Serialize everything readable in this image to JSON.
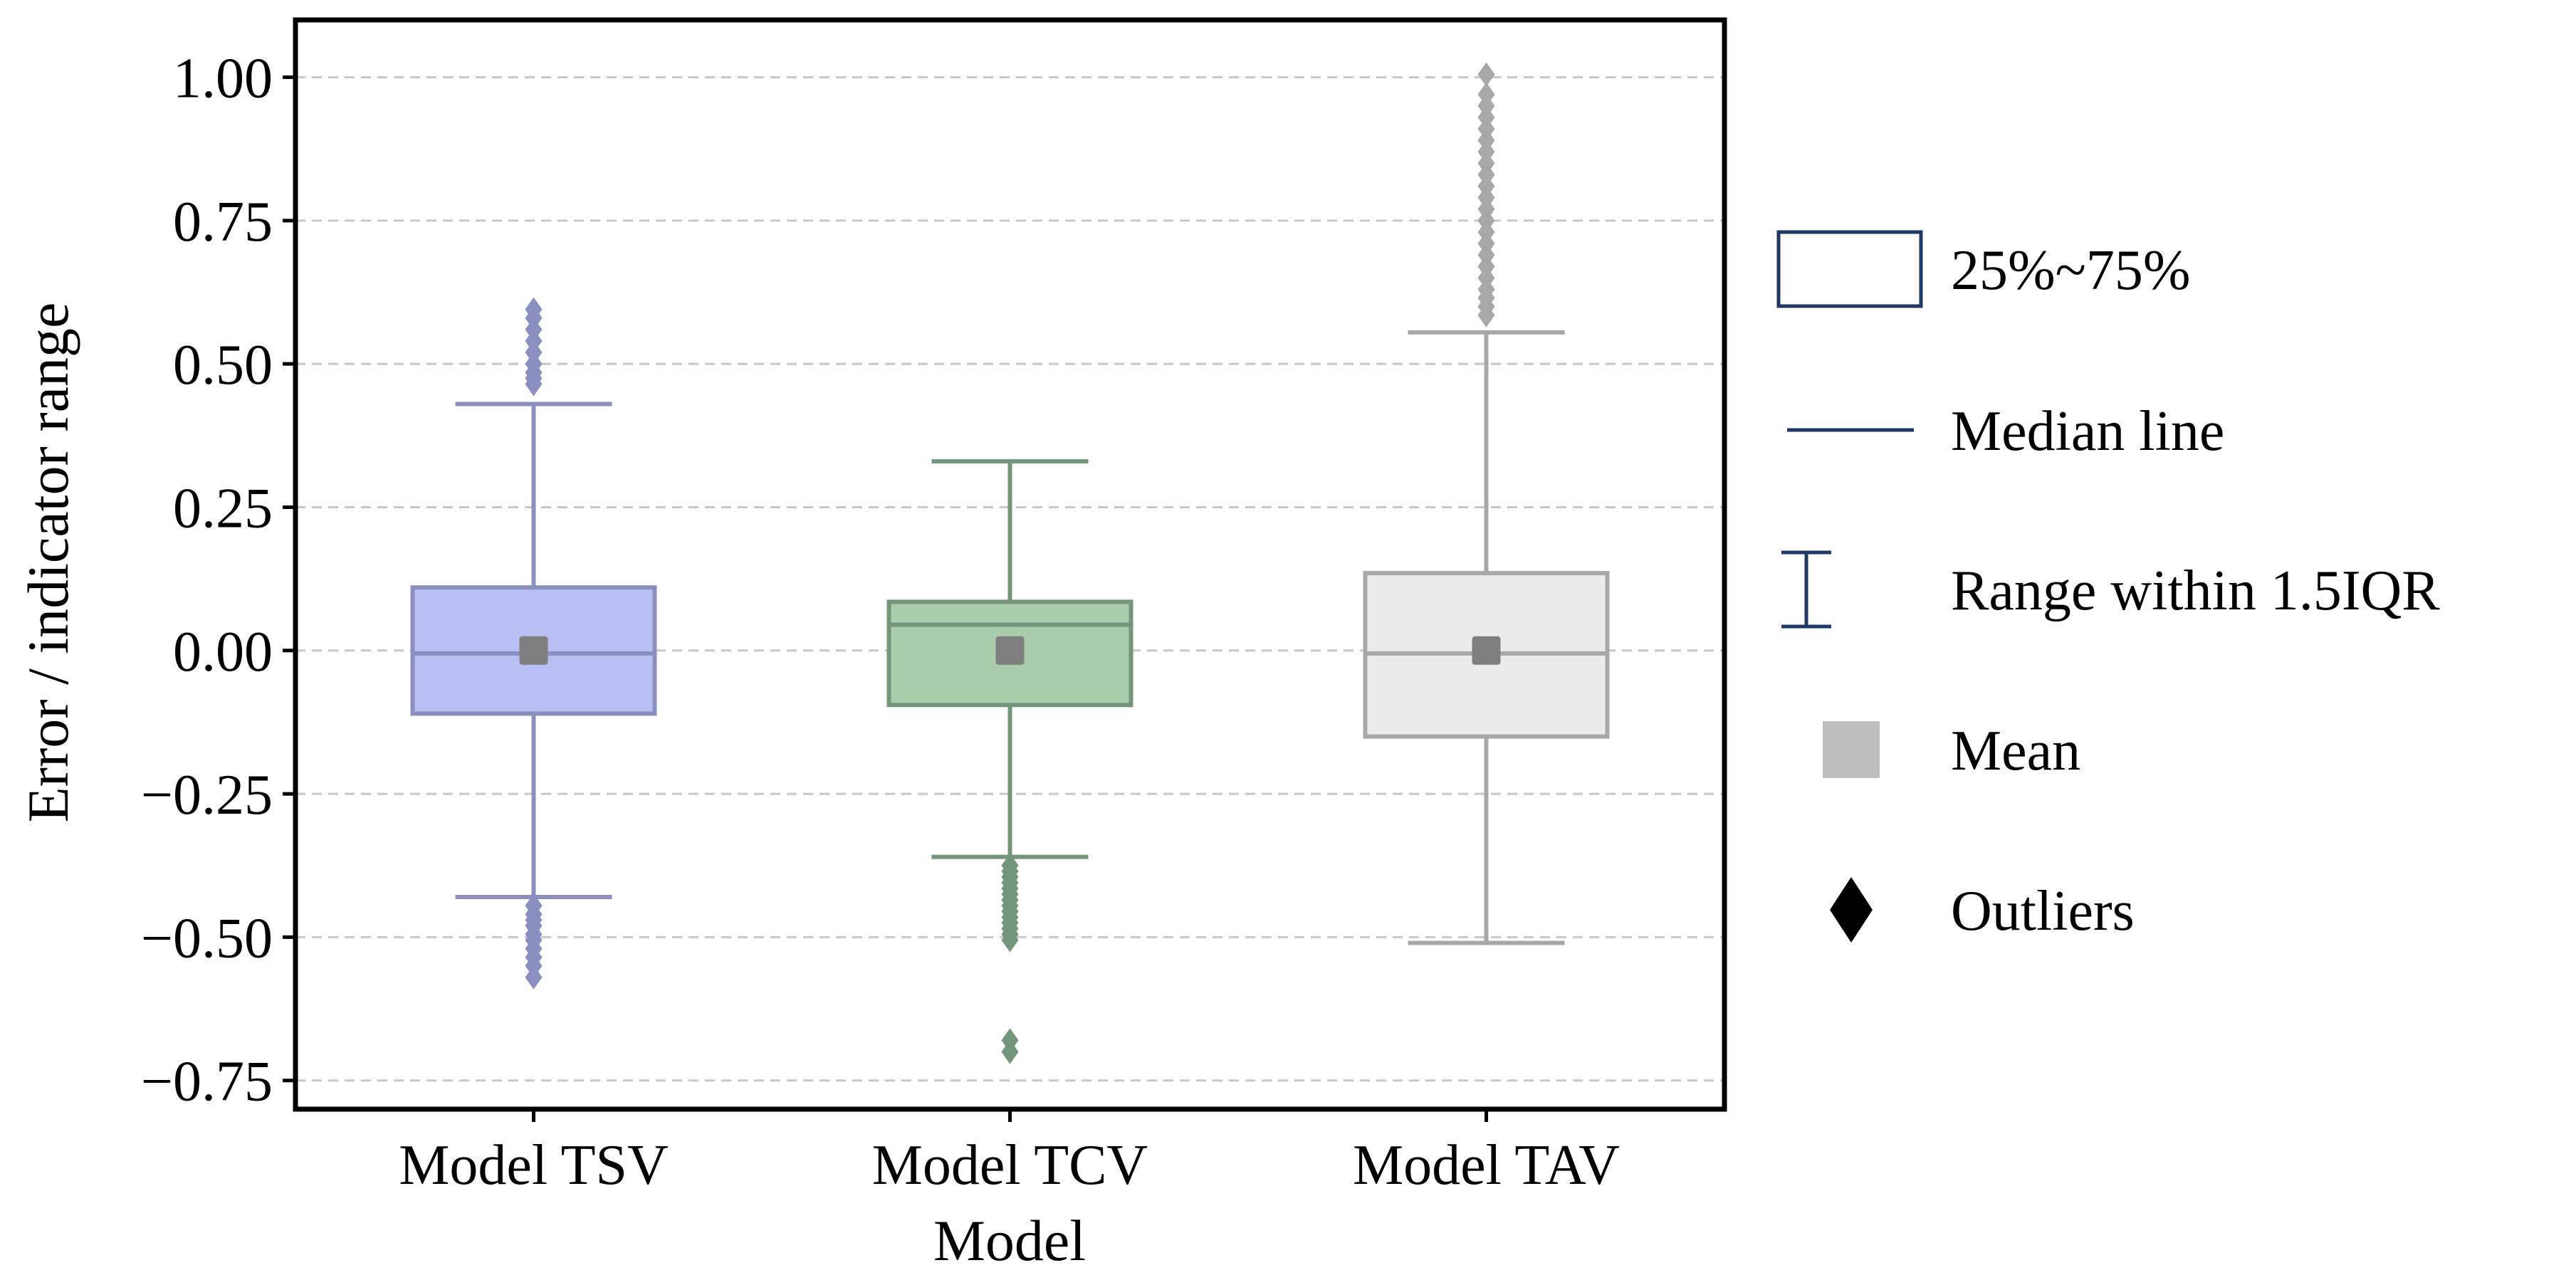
{
  "chart_data": {
    "type": "box",
    "title": "",
    "xlabel": "Model",
    "ylabel": "Error / indicator range",
    "ylim": [
      -0.8,
      1.1
    ],
    "yticks": [
      1.0,
      0.75,
      0.5,
      0.25,
      0.0,
      -0.25,
      -0.5,
      -0.75
    ],
    "ytick_labels": [
      "1.00",
      "0.75",
      "0.50",
      "0.25",
      "0.00",
      "−0.25",
      "−0.50",
      "−0.75"
    ],
    "grid": true,
    "categories": [
      "Model TSV",
      "Model TCV",
      "Model TAV"
    ],
    "boxes": [
      {
        "name": "Model TSV",
        "color": "#8A8FBF",
        "fill": "#B8C0F3",
        "q1": -0.11,
        "median": -0.005,
        "q3": 0.11,
        "mean": 0.0,
        "whisker_low": -0.43,
        "whisker_high": 0.43,
        "outliers": [
          0.465,
          0.475,
          0.485,
          0.5,
          0.52,
          0.54,
          0.56,
          0.58,
          0.595,
          -0.445,
          -0.46,
          -0.47,
          -0.48,
          -0.495,
          -0.505,
          -0.52,
          -0.535,
          -0.55,
          -0.57
        ]
      },
      {
        "name": "Model TCV",
        "color": "#73957A",
        "fill": "#A9CDAA",
        "q1": -0.095,
        "median": 0.045,
        "q3": 0.085,
        "mean": 0.0,
        "whisker_low": -0.36,
        "whisker_high": 0.33,
        "outliers": [
          -0.375,
          -0.385,
          -0.395,
          -0.405,
          -0.415,
          -0.425,
          -0.435,
          -0.445,
          -0.455,
          -0.465,
          -0.475,
          -0.485,
          -0.495,
          -0.505,
          -0.68,
          -0.7
        ]
      },
      {
        "name": "Model TAV",
        "color": "#A8A8A8",
        "fill": "#EBEBEB",
        "q1": -0.15,
        "median": -0.005,
        "q3": 0.135,
        "mean": 0.0,
        "whisker_low": -0.51,
        "whisker_high": 0.555,
        "outliers": [
          0.585,
          0.6,
          0.615,
          0.63,
          0.65,
          0.67,
          0.69,
          0.71,
          0.73,
          0.75,
          0.77,
          0.79,
          0.81,
          0.83,
          0.85,
          0.87,
          0.89,
          0.91,
          0.93,
          0.95,
          0.97,
          1.005
        ]
      }
    ],
    "legend": {
      "position": "right",
      "entries": [
        {
          "key": "box",
          "label": "25%~75%"
        },
        {
          "key": "median",
          "label": "Median line"
        },
        {
          "key": "range",
          "label": "Range within 1.5IQR"
        },
        {
          "key": "mean",
          "label": "Mean"
        },
        {
          "key": "outlier",
          "label": "Outliers"
        }
      ]
    },
    "colors": {
      "legend_navy": "#1F3864",
      "legend_mean": "#BEBEBE",
      "legend_outlier": "#000000",
      "grid": "#C8C8C8",
      "mean_marker": "#7F7F7F"
    }
  }
}
